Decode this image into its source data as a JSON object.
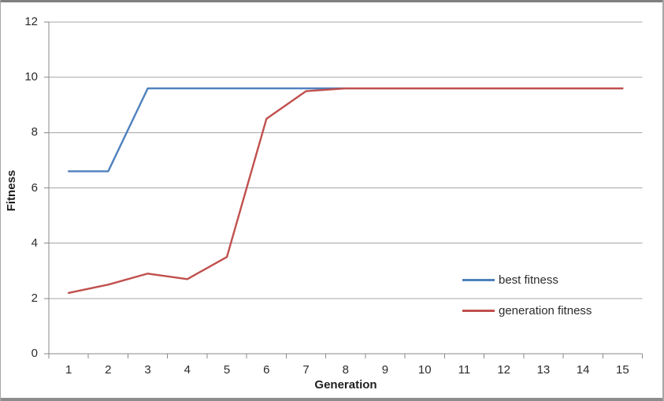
{
  "chart_data": {
    "type": "line",
    "title": "",
    "xlabel": "Generation",
    "ylabel": "Fitness",
    "x": [
      1,
      2,
      3,
      4,
      5,
      6,
      7,
      8,
      9,
      10,
      11,
      12,
      13,
      14,
      15
    ],
    "ylim": [
      0,
      12
    ],
    "yticks": [
      0,
      2,
      4,
      6,
      8,
      10,
      12
    ],
    "grid": "horizontal gridlines every 2 units",
    "legend_position": "inside right, lower half, no border",
    "series": [
      {
        "name": "best fitness",
        "color": "#4F81BD",
        "values": [
          6.6,
          6.6,
          9.6,
          9.6,
          9.6,
          9.6,
          9.6,
          9.6,
          9.6,
          9.6,
          9.6,
          9.6,
          9.6,
          9.6,
          9.6
        ]
      },
      {
        "name": "generation fitness",
        "color": "#C0504D",
        "values": [
          2.2,
          2.5,
          2.9,
          2.7,
          3.5,
          8.5,
          9.5,
          9.6,
          9.6,
          9.6,
          9.6,
          9.6,
          9.6,
          9.6,
          9.6
        ]
      }
    ],
    "axis_color": "#898989",
    "gridline_color": "#a6a6a6",
    "text_color": "#2b2b2b"
  }
}
